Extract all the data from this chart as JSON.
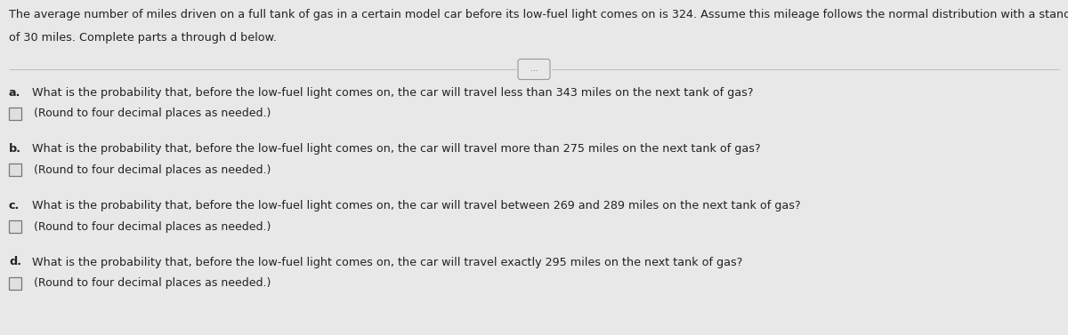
{
  "background_color": "#e8e8e8",
  "header_text_line1": "The average number of miles driven on a full tank of gas in a certain model car before its low-fuel light comes on is 324. Assume this mileage follows the normal distribution with a standard deviation",
  "header_text_line2": "of 30 miles. Complete parts a through d below.",
  "divider_button_text": "...",
  "questions": [
    {
      "label": "a.",
      "question": "What is the probability that, before the low-fuel light comes on, the car will travel less than 343 miles on the next tank of gas?",
      "subtext": "(Round to four decimal places as needed.)"
    },
    {
      "label": "b.",
      "question": "What is the probability that, before the low-fuel light comes on, the car will travel more than 275 miles on the next tank of gas?",
      "subtext": "(Round to four decimal places as needed.)"
    },
    {
      "label": "c.",
      "question": "What is the probability that, before the low-fuel light comes on, the car will travel between 269 and 289 miles on the next tank of gas?",
      "subtext": "(Round to four decimal places as needed.)"
    },
    {
      "label": "d.",
      "question": "What is the probability that, before the low-fuel light comes on, the car will travel exactly 295 miles on the next tank of gas?",
      "subtext": "(Round to four decimal places as needed.)"
    }
  ],
  "header_fontsize": 9.2,
  "question_fontsize": 9.2,
  "subtext_fontsize": 9.0,
  "text_color": "#222222",
  "checkbox_color": "#e0e0e0",
  "checkbox_edge_color": "#777777",
  "line_color": "#bbbbbb",
  "btn_edge_color": "#999999"
}
